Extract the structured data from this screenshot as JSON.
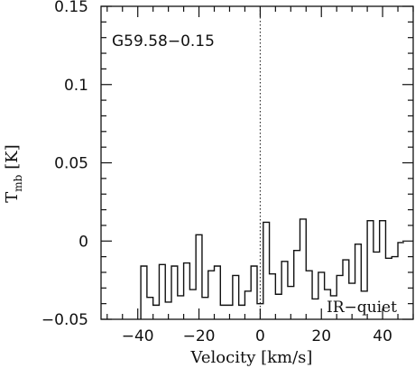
{
  "chart_data": {
    "type": "line",
    "title": "",
    "xlabel": "Velocity [km/s]",
    "ylabel": "T",
    "ylabel_subscript": "mb",
    "ylabel_unit": "[K]",
    "xlim": [
      -52,
      50
    ],
    "ylim": [
      -0.05,
      0.15
    ],
    "x_ticks": [
      -40,
      -20,
      0,
      20,
      40
    ],
    "x_tick_labels": [
      "−40",
      "−20",
      "0",
      "20",
      "40"
    ],
    "y_ticks": [
      -0.05,
      0,
      0.05,
      0.1,
      0.15
    ],
    "y_tick_labels": [
      "−0.05",
      "0",
      "0.05",
      "0.1",
      "0.15"
    ],
    "grid": false,
    "annotations": {
      "source": "G59.58−0.15",
      "classification": "IR−quiet"
    },
    "vline_x": 0,
    "series": [
      {
        "style": "histogram",
        "x": [
          -38,
          -36,
          -34,
          -32,
          -30,
          -28,
          -26,
          -24,
          -22,
          -20,
          -18,
          -16,
          -14,
          -12,
          -10,
          -8,
          -6,
          -4,
          -2,
          0,
          2,
          4,
          6,
          8,
          10,
          12,
          14,
          16,
          18,
          20,
          22,
          24,
          26,
          28,
          30,
          32,
          34,
          36,
          38,
          40,
          42,
          44,
          46
        ],
        "y": [
          -0.016,
          -0.036,
          -0.041,
          -0.015,
          -0.039,
          -0.016,
          -0.035,
          -0.014,
          -0.031,
          0.004,
          -0.036,
          -0.019,
          -0.016,
          -0.041,
          -0.041,
          -0.022,
          -0.041,
          -0.032,
          -0.016,
          -0.04,
          0.012,
          -0.021,
          -0.034,
          -0.013,
          -0.029,
          -0.006,
          0.014,
          -0.019,
          -0.037,
          -0.02,
          -0.031,
          -0.035,
          -0.022,
          -0.012,
          -0.027,
          -0.002,
          -0.032,
          0.013,
          -0.007,
          0.013,
          -0.011,
          -0.01,
          -0.001
        ]
      }
    ]
  }
}
